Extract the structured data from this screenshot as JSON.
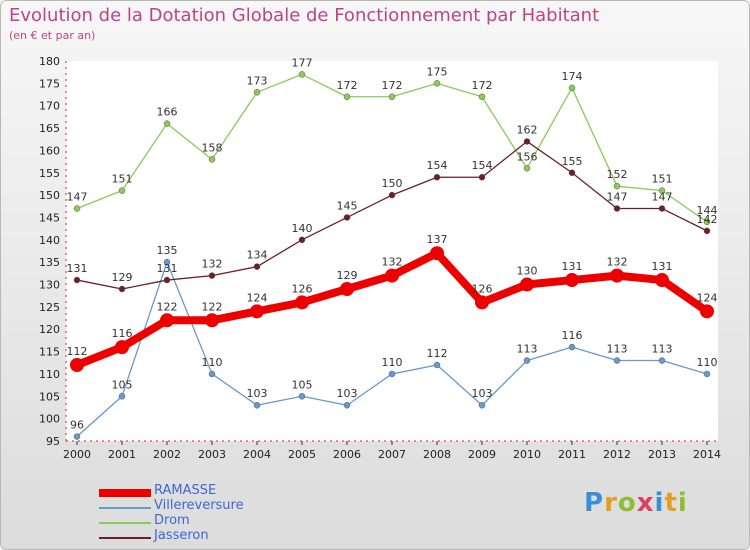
{
  "header": {
    "title": "Evolution de la Dotation Globale de Fonctionnement par Habitant",
    "subtitle": "(en € et par an)"
  },
  "colors": {
    "title": "#c2437f",
    "legend_text": "#3f66d8",
    "RAMASSE": "#ee0000",
    "Villereversure": "#6699cc",
    "Drom": "#88cc55",
    "Jasseron": "#6b1f27"
  },
  "logo": {
    "text": "Proxiti",
    "letter_colors": [
      "#3a8fd6",
      "#e0a020",
      "#8fbf30",
      "#e04060",
      "#3a8fd6",
      "#e0a020",
      "#8fbf30"
    ]
  },
  "chart_data": {
    "type": "line",
    "title": "Evolution de la Dotation Globale de Fonctionnement par Habitant",
    "subtitle": "(en € et par an)",
    "x": [
      "2000",
      "2001",
      "2002",
      "2003",
      "2004",
      "2005",
      "2006",
      "2007",
      "2008",
      "2009",
      "2010",
      "2011",
      "2012",
      "2013",
      "2014"
    ],
    "ylim": [
      95,
      180
    ],
    "yticks": [
      95,
      100,
      105,
      110,
      115,
      120,
      125,
      130,
      135,
      140,
      145,
      150,
      155,
      160,
      165,
      170,
      175,
      180
    ],
    "grid": false,
    "legend_position": "bottom-left",
    "series": [
      {
        "name": "RAMASSE",
        "values": [
          112,
          116,
          122,
          122,
          124,
          126,
          129,
          132,
          137,
          126,
          130,
          131,
          132,
          131,
          124
        ]
      },
      {
        "name": "Villereversure",
        "values": [
          96,
          105,
          135,
          110,
          103,
          105,
          103,
          110,
          112,
          103,
          113,
          116,
          113,
          113,
          110
        ]
      },
      {
        "name": "Drom",
        "values": [
          147,
          151,
          166,
          158,
          173,
          177,
          172,
          172,
          175,
          172,
          156,
          174,
          152,
          151,
          144
        ]
      },
      {
        "name": "Jasseron",
        "values": [
          131,
          129,
          131,
          132,
          134,
          140,
          145,
          150,
          154,
          154,
          162,
          155,
          147,
          147,
          142
        ]
      }
    ]
  }
}
